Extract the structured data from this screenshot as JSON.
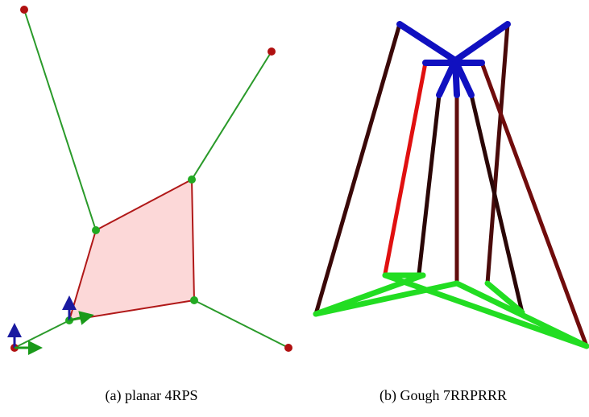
{
  "subfigures": [
    {
      "caption": "(a) planar 4RPS"
    },
    {
      "caption": "(b) Gough 7RRPRRR"
    }
  ]
}
